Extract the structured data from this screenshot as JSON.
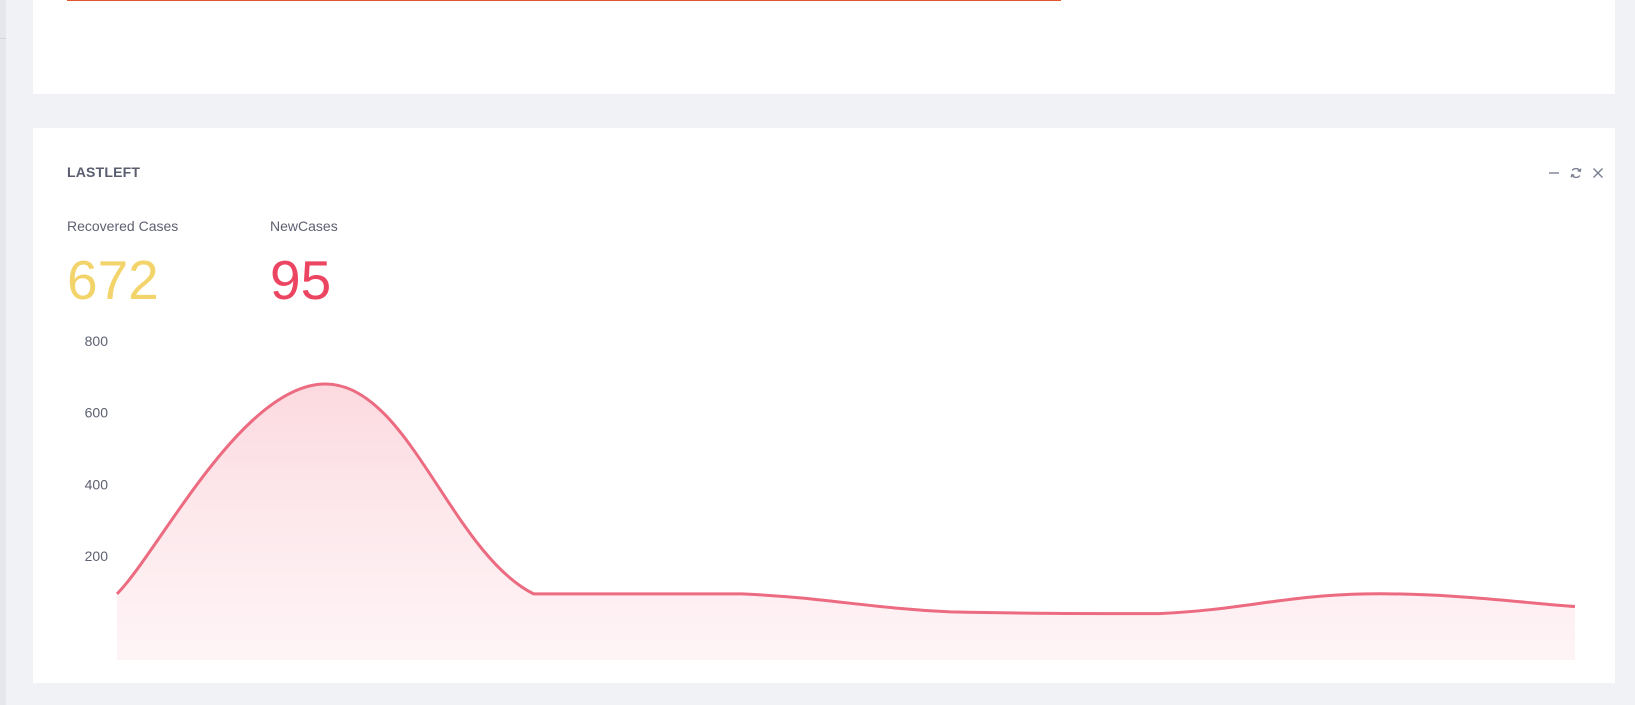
{
  "colors": {
    "top_accent_line": "#e0572f",
    "recovered": "#f3d46b",
    "new_cases": "#ec4561",
    "series_line": "#ec6b80",
    "area_fill": "#fde2e6",
    "tool_icon": "#7a7f92"
  },
  "panel": {
    "title": "LASTLEFT",
    "tools": [
      "minus-icon",
      "refresh-icon",
      "close-icon"
    ]
  },
  "stats": {
    "recovered": {
      "label": "Recovered Cases",
      "value": "672"
    },
    "new_cases": {
      "label": "NewCases",
      "value": "95"
    }
  },
  "chart_data": {
    "type": "area",
    "title": "",
    "xlabel": "",
    "ylabel": "",
    "yticks": [
      "800",
      "600",
      "400",
      "200"
    ],
    "ylim": [
      0,
      850
    ],
    "grid": false,
    "legend": "none",
    "series": [
      {
        "values": [
          95,
          680,
          95,
          95,
          45,
          40,
          95,
          60
        ]
      }
    ]
  }
}
